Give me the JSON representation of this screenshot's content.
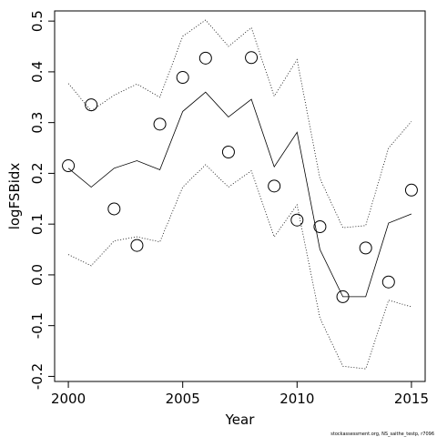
{
  "chart_data": {
    "type": "line",
    "xlabel": "Year",
    "ylabel": "logFSBidx",
    "xlim": [
      1999.4,
      2015.6
    ],
    "ylim": [
      -0.21,
      0.52
    ],
    "x_ticks": [
      2000,
      2005,
      2010,
      2015
    ],
    "x_tick_labels": [
      "2000",
      "2005",
      "2010",
      "2015"
    ],
    "y_ticks": [
      -0.2,
      -0.1,
      0.0,
      0.1,
      0.2,
      0.3,
      0.4,
      0.5
    ],
    "y_tick_labels": [
      "-0.2",
      "-0.1",
      "0.0",
      "0.1",
      "0.2",
      "0.3",
      "0.4",
      "0.5"
    ],
    "grid": false,
    "x": [
      2000,
      2001,
      2002,
      2003,
      2004,
      2005,
      2006,
      2007,
      2008,
      2009,
      2010,
      2011,
      2012,
      2013,
      2014,
      2015
    ],
    "series": [
      {
        "style": "points",
        "values": [
          0.215,
          0.335,
          0.13,
          0.058,
          0.297,
          0.389,
          0.427,
          0.242,
          0.428,
          0.175,
          0.108,
          0.095,
          -0.043,
          0.053,
          -0.014,
          0.167
        ]
      },
      {
        "style": "solid",
        "values": [
          0.21,
          0.173,
          0.21,
          0.225,
          0.207,
          0.322,
          0.36,
          0.311,
          0.346,
          0.213,
          0.281,
          0.05,
          -0.043,
          -0.043,
          0.102,
          0.12
        ]
      },
      {
        "style": "dotted",
        "values": [
          0.377,
          0.323,
          0.354,
          0.376,
          0.35,
          0.47,
          0.502,
          0.45,
          0.487,
          0.352,
          0.424,
          0.19,
          0.093,
          0.097,
          0.25,
          0.302
        ]
      },
      {
        "style": "dotted",
        "values": [
          0.04,
          0.018,
          0.067,
          0.075,
          0.065,
          0.173,
          0.217,
          0.173,
          0.205,
          0.075,
          0.138,
          -0.085,
          -0.18,
          -0.185,
          -0.05,
          -0.063
        ]
      }
    ],
    "footnote": "stockassessment.org, NS_saithe_testp, r7096"
  }
}
